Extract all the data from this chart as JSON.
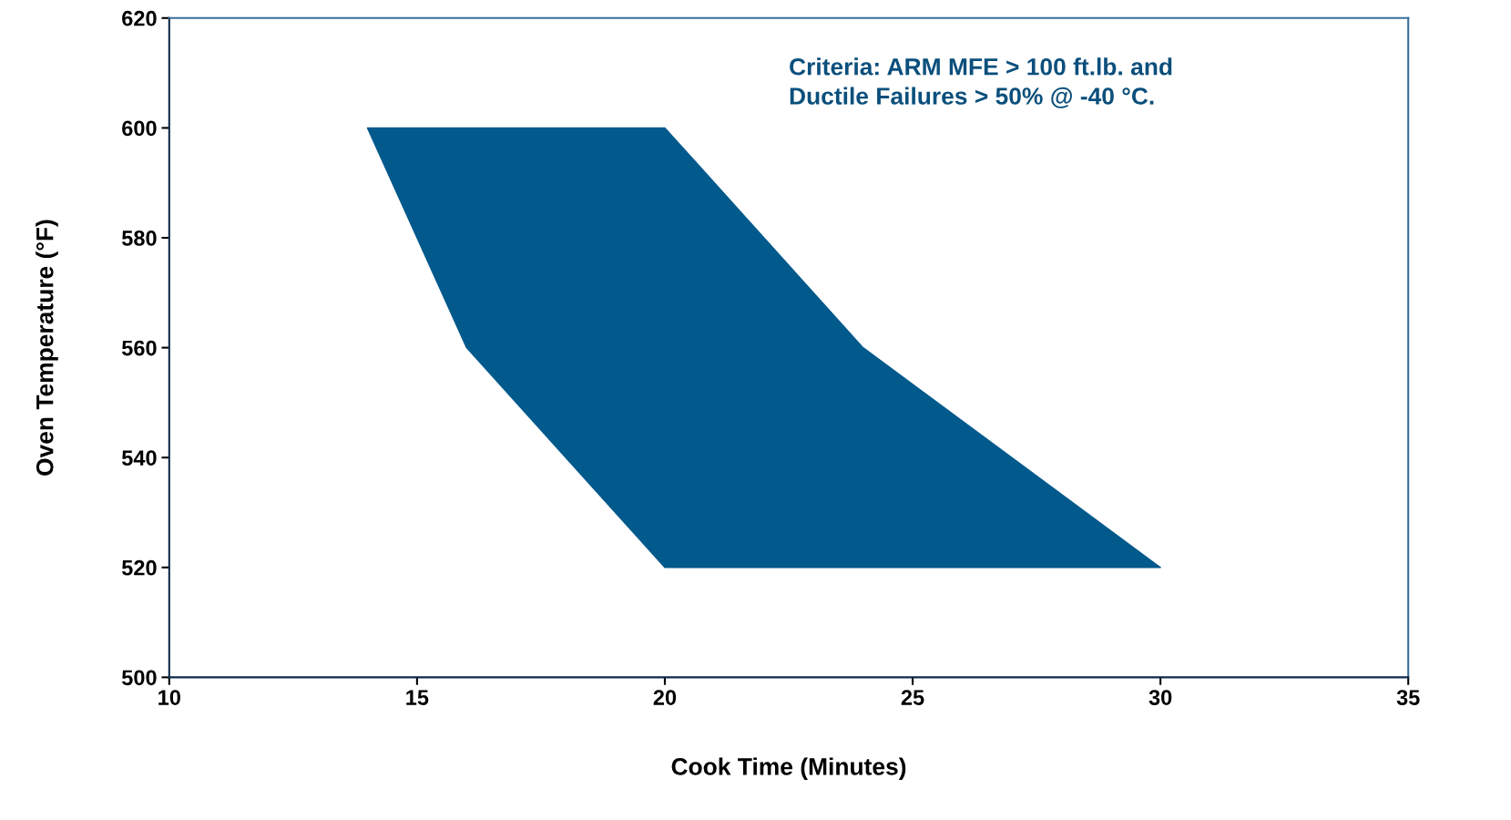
{
  "chart_data": {
    "type": "area",
    "xlabel": "Cook Time (Minutes)",
    "ylabel": "Oven Temperature (°F)",
    "annotations": [
      "Criteria: ARM MFE > 100 ft.lb. and\nDuctile Failures > 50% @ -40 °C."
    ],
    "series": [
      {
        "color": "#02598c",
        "x": [
          14,
          20,
          24,
          30,
          20,
          16,
          14
        ],
        "values": [
          600,
          600,
          560,
          520,
          520,
          560,
          600
        ]
      }
    ],
    "xlim": [
      10,
      35
    ],
    "xticks": [
      10,
      15,
      20,
      25,
      30,
      35
    ],
    "ylim": [
      500,
      620
    ],
    "yticks": [
      500,
      520,
      540,
      560,
      580,
      600,
      620
    ],
    "grid": false,
    "legend": false
  }
}
